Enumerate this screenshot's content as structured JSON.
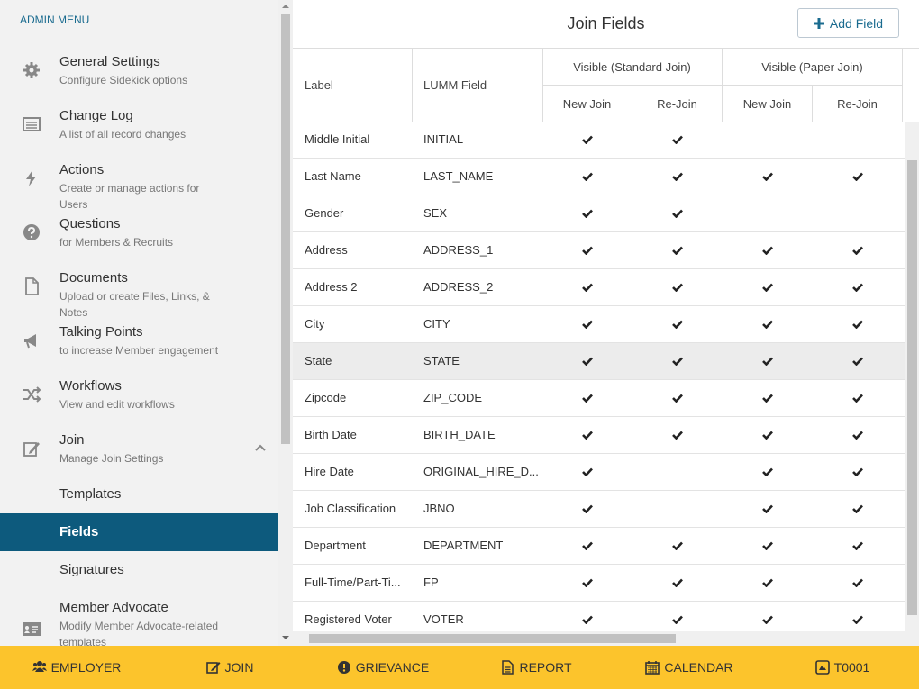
{
  "sidebar": {
    "heading": "ADMIN MENU",
    "items": [
      {
        "title": "General Settings",
        "subtitle": "Configure Sidekick options"
      },
      {
        "title": "Change Log",
        "subtitle": "A list of all record changes"
      },
      {
        "title": "Actions",
        "subtitle": "Create or manage actions for Users"
      },
      {
        "title": "Questions",
        "subtitle": "for Members & Recruits"
      },
      {
        "title": "Documents",
        "subtitle": "Upload or create Files, Links, & Notes"
      },
      {
        "title": "Talking Points",
        "subtitle": "to increase Member engagement"
      },
      {
        "title": "Workflows",
        "subtitle": "View and edit workflows"
      },
      {
        "title": "Join",
        "subtitle": "Manage Join Settings"
      },
      {
        "title": "Member Advocate",
        "subtitle": "Modify Member Advocate-related templates"
      }
    ],
    "join_submenu": [
      "Templates",
      "Fields",
      "Signatures"
    ]
  },
  "main": {
    "title": "Join Fields",
    "add_button": "Add Field"
  },
  "table": {
    "columns": {
      "label": "Label",
      "field": "LUMM Field"
    },
    "groups": [
      {
        "title": "Visible (Standard Join)",
        "subcolumns": [
          "New Join",
          "Re-Join"
        ]
      },
      {
        "title": "Visible (Paper Join)",
        "subcolumns": [
          "New Join",
          "Re-Join"
        ]
      }
    ],
    "rows": [
      {
        "label": "Middle Initial",
        "field": "INITIAL",
        "checks": [
          true,
          true,
          false,
          false
        ]
      },
      {
        "label": "Last Name",
        "field": "LAST_NAME",
        "checks": [
          true,
          true,
          true,
          true
        ]
      },
      {
        "label": "Gender",
        "field": "SEX",
        "checks": [
          true,
          true,
          false,
          false
        ]
      },
      {
        "label": "Address",
        "field": "ADDRESS_1",
        "checks": [
          true,
          true,
          true,
          true
        ]
      },
      {
        "label": "Address 2",
        "field": "ADDRESS_2",
        "checks": [
          true,
          true,
          true,
          true
        ]
      },
      {
        "label": "City",
        "field": "CITY",
        "checks": [
          true,
          true,
          true,
          true
        ]
      },
      {
        "label": "State",
        "field": "STATE",
        "checks": [
          true,
          true,
          true,
          true
        ]
      },
      {
        "label": "Zipcode",
        "field": "ZIP_CODE",
        "checks": [
          true,
          true,
          true,
          true
        ]
      },
      {
        "label": "Birth Date",
        "field": "BIRTH_DATE",
        "checks": [
          true,
          true,
          true,
          true
        ]
      },
      {
        "label": "Hire Date",
        "field": "ORIGINAL_HIRE_D...",
        "checks": [
          true,
          false,
          true,
          true
        ]
      },
      {
        "label": "Job Classification",
        "field": "JBNO",
        "checks": [
          true,
          false,
          true,
          true
        ]
      },
      {
        "label": "Department",
        "field": "DEPARTMENT",
        "checks": [
          true,
          true,
          true,
          true
        ]
      },
      {
        "label": "Full-Time/Part-Ti...",
        "field": "FP",
        "checks": [
          true,
          true,
          true,
          true
        ]
      },
      {
        "label": "Registered Voter",
        "field": "VOTER",
        "checks": [
          true,
          true,
          true,
          true
        ]
      }
    ]
  },
  "bottom_nav": [
    "EMPLOYER",
    "JOIN",
    "GRIEVANCE",
    "REPORT",
    "CALENDAR",
    "T0001"
  ]
}
